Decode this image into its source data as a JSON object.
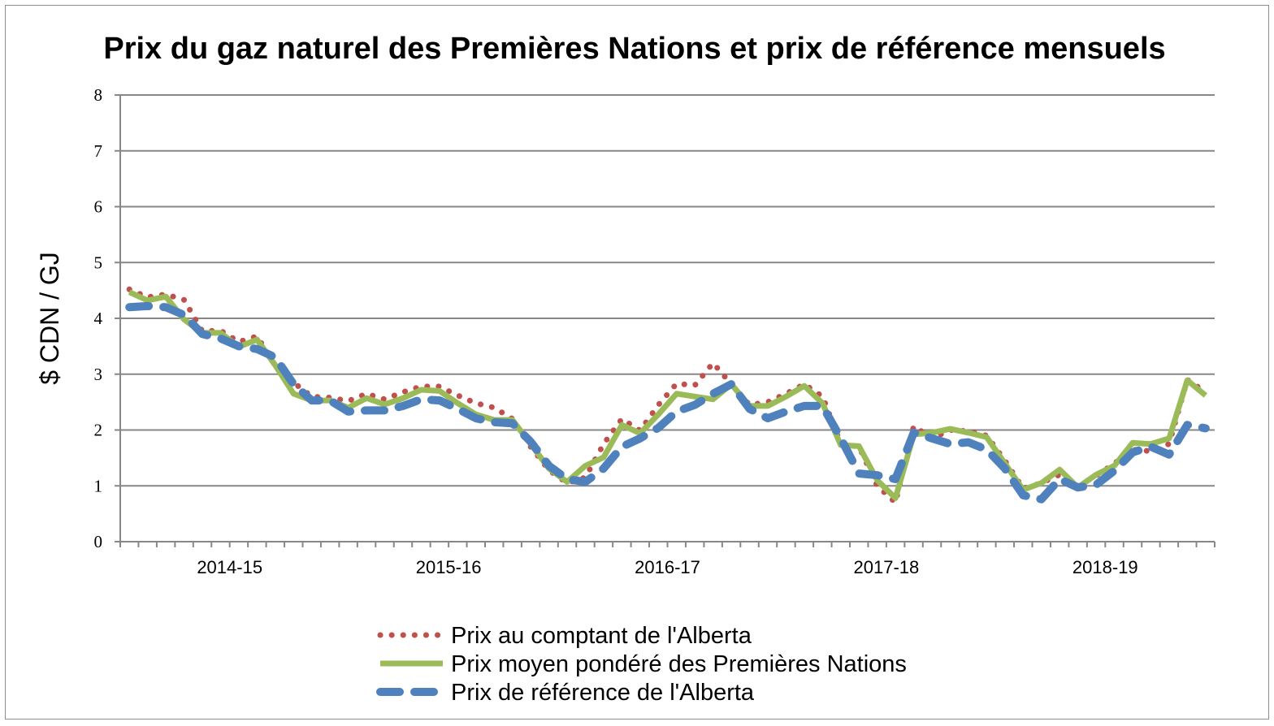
{
  "chart_data": {
    "type": "line",
    "title": "Prix du gaz naturel des Premières Nations et prix de référence mensuels",
    "xlabel": "",
    "ylabel": "$ CDN / GJ",
    "ylim": [
      0,
      8
    ],
    "yticks": [
      "0",
      "1",
      "2",
      "3",
      "4",
      "5",
      "6",
      "7",
      "8"
    ],
    "x_category_labels": [
      "2014-15",
      "2015-16",
      "2016-17",
      "2017-18",
      "2018-19"
    ],
    "months_per_category": 12,
    "grid": true,
    "legend_position": "bottom",
    "series": [
      {
        "name": "Prix au comptant de l'Alberta",
        "color": "#c0504d",
        "style": "dotted",
        "values": [
          4.52,
          4.38,
          4.43,
          4.33,
          3.77,
          3.78,
          3.58,
          3.68,
          3.15,
          2.85,
          2.6,
          2.58,
          2.52,
          2.65,
          2.55,
          2.68,
          2.78,
          2.78,
          2.62,
          2.48,
          2.4,
          2.2,
          1.7,
          1.28,
          1.05,
          1.15,
          1.75,
          2.2,
          1.99,
          2.45,
          2.83,
          2.8,
          3.2,
          2.82,
          2.45,
          2.5,
          2.65,
          2.82,
          2.6,
          1.75,
          1.7,
          1.0,
          0.7,
          2.07,
          1.85,
          2.0,
          1.98,
          1.9,
          1.45,
          0.95,
          1.05,
          1.2,
          1.0,
          1.18,
          1.4,
          1.65,
          1.62,
          1.75,
          2.9,
          2.68
        ]
      },
      {
        "name": "Prix moyen pondéré des Premières Nations",
        "color": "#9bbb59",
        "style": "solid",
        "values": [
          4.47,
          4.32,
          4.39,
          3.98,
          3.74,
          3.74,
          3.49,
          3.62,
          3.16,
          2.65,
          2.53,
          2.53,
          2.4,
          2.57,
          2.46,
          2.57,
          2.72,
          2.7,
          2.48,
          2.28,
          2.18,
          2.18,
          1.75,
          1.31,
          1.07,
          1.36,
          1.51,
          2.09,
          1.94,
          2.28,
          2.65,
          2.6,
          2.55,
          2.82,
          2.43,
          2.43,
          2.6,
          2.79,
          2.48,
          1.73,
          1.71,
          1.1,
          0.78,
          1.92,
          1.95,
          2.02,
          1.95,
          1.87,
          1.4,
          0.93,
          1.05,
          1.29,
          0.97,
          1.2,
          1.36,
          1.77,
          1.75,
          1.85,
          2.89,
          2.62
        ]
      },
      {
        "name": "Prix de référence de l'Alberta",
        "color": "#4f81bd",
        "style": "dashed",
        "values": [
          4.2,
          4.22,
          4.2,
          4.06,
          3.72,
          3.64,
          3.5,
          3.45,
          3.3,
          2.82,
          2.53,
          2.53,
          2.33,
          2.35,
          2.35,
          2.43,
          2.55,
          2.53,
          2.38,
          2.21,
          2.14,
          2.12,
          1.79,
          1.36,
          1.12,
          1.07,
          1.31,
          1.7,
          1.85,
          2.04,
          2.33,
          2.45,
          2.65,
          2.82,
          2.38,
          2.21,
          2.33,
          2.43,
          2.43,
          1.85,
          1.22,
          1.19,
          1.12,
          1.95,
          1.85,
          1.75,
          1.78,
          1.65,
          1.31,
          0.83,
          0.76,
          1.12,
          0.97,
          1.02,
          1.27,
          1.6,
          1.7,
          1.56,
          2.09,
          2.03
        ]
      }
    ]
  }
}
